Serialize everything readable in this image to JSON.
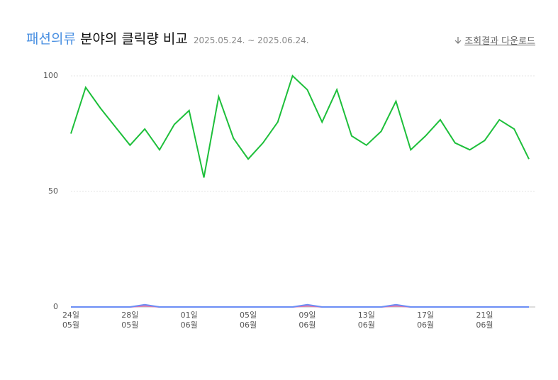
{
  "title_highlight": "패션의류",
  "title_rest": "분야의 클릭량 비교",
  "date_range": "2025.05.24. ~ 2025.06.24.",
  "download": "조회결과 다운로드",
  "chart_data": {
    "type": "line",
    "categories": [
      "24일",
      null,
      null,
      null,
      "28일",
      null,
      null,
      null,
      "01일",
      null,
      null,
      null,
      "05일",
      null,
      null,
      null,
      "09일",
      null,
      null,
      null,
      "13일",
      null,
      null,
      null,
      "17일",
      null,
      null,
      null,
      "21일",
      null,
      null,
      null
    ],
    "category_months": [
      "05월",
      null,
      null,
      null,
      "05월",
      null,
      null,
      null,
      "06월",
      null,
      null,
      null,
      "06월",
      null,
      null,
      null,
      "06월",
      null,
      null,
      null,
      "06월",
      null,
      null,
      null,
      "06월",
      null,
      null,
      null,
      "06월",
      null,
      null,
      null
    ],
    "series": [
      {
        "color": "#1dbf3a",
        "values": [
          75,
          95,
          86,
          78,
          70,
          77,
          68,
          79,
          85,
          56,
          91,
          73,
          64,
          71,
          80,
          100,
          94,
          80,
          94,
          74,
          70,
          76,
          89,
          68,
          74,
          81,
          71,
          68,
          72,
          81,
          77,
          64
        ]
      },
      {
        "color": "#f06ea9",
        "values": [
          0,
          0,
          0,
          0,
          0,
          0.5,
          0,
          0,
          0,
          0,
          0,
          0,
          0,
          0,
          0,
          0,
          0.5,
          0,
          0,
          0,
          0,
          0,
          0.5,
          0,
          0,
          0,
          0,
          0,
          0,
          0,
          0,
          0
        ]
      },
      {
        "color": "#6b8ef5",
        "values": [
          0,
          0,
          0,
          0,
          0,
          1,
          0,
          0,
          0,
          0,
          0,
          0,
          0,
          0,
          0,
          0,
          1,
          0,
          0,
          0,
          0,
          0,
          1,
          0,
          0,
          0,
          0,
          0,
          0,
          0,
          0,
          0
        ]
      }
    ],
    "ylim": [
      0,
      100
    ],
    "yticks": [
      0,
      50,
      100
    ],
    "grid": true
  }
}
